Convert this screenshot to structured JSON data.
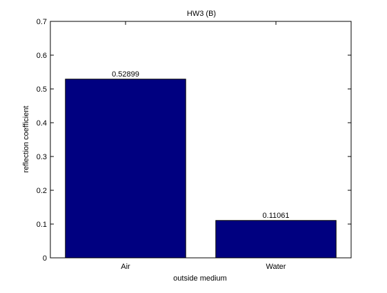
{
  "chart_data": {
    "type": "bar",
    "title": "HW3 (B)",
    "xlabel": "outside medium",
    "ylabel": "reflection coefficient",
    "categories": [
      "Air",
      "Water"
    ],
    "values": [
      0.52899,
      0.11061
    ],
    "data_labels": [
      "0.52899",
      "0.11061"
    ],
    "ylim": [
      0,
      0.7
    ],
    "yticks": [
      0,
      0.1,
      0.2,
      0.3,
      0.4,
      0.5,
      0.6,
      0.7
    ],
    "ytick_labels": [
      "0",
      "0.1",
      "0.2",
      "0.3",
      "0.4",
      "0.5",
      "0.6",
      "0.7"
    ],
    "grid": false,
    "bar_color": "#000080",
    "axes_color": "#000000",
    "background_color": "#ffffff"
  }
}
